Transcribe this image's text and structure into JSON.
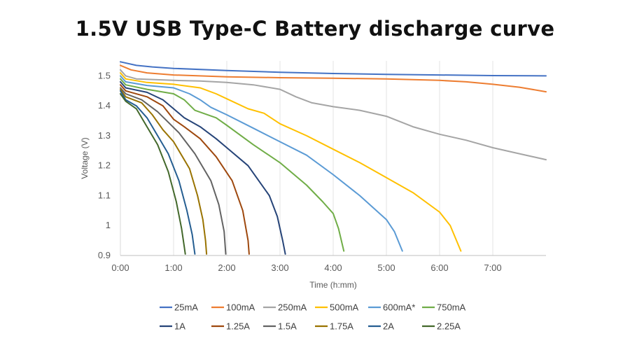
{
  "title": "1.5V USB Type-C Battery discharge curve",
  "chart_data": {
    "type": "line",
    "title": "1.5V USB Type-C Battery discharge curve",
    "xlabel": "Time (h:mm)",
    "ylabel": "Voltage (V)",
    "xlim": [
      0,
      8
    ],
    "ylim": [
      0.9,
      1.55
    ],
    "x_ticks": [
      {
        "value": 0,
        "label": "0:00"
      },
      {
        "value": 1,
        "label": "1:00"
      },
      {
        "value": 2,
        "label": "2:00"
      },
      {
        "value": 3,
        "label": "3:00"
      },
      {
        "value": 4,
        "label": "4:00"
      },
      {
        "value": 5,
        "label": "5:00"
      },
      {
        "value": 6,
        "label": "6:00"
      },
      {
        "value": 7,
        "label": "7:00"
      }
    ],
    "y_ticks": [
      {
        "value": 0.9,
        "label": "0.9"
      },
      {
        "value": 1.0,
        "label": "1"
      },
      {
        "value": 1.1,
        "label": "1.1"
      },
      {
        "value": 1.2,
        "label": "1.2"
      },
      {
        "value": 1.3,
        "label": "1.3"
      },
      {
        "value": 1.4,
        "label": "1.4"
      },
      {
        "value": 1.5,
        "label": "1.5"
      }
    ],
    "grid": "vertical",
    "legend_position": "bottom",
    "series": [
      {
        "name": "25mA",
        "color": "#4472C4",
        "points": [
          [
            0,
            1.547
          ],
          [
            0.3,
            1.535
          ],
          [
            0.6,
            1.53
          ],
          [
            1,
            1.525
          ],
          [
            2,
            1.518
          ],
          [
            3,
            1.512
          ],
          [
            4,
            1.508
          ],
          [
            5,
            1.505
          ],
          [
            6,
            1.503
          ],
          [
            7,
            1.501
          ],
          [
            8,
            1.5
          ]
        ]
      },
      {
        "name": "100mA",
        "color": "#ED7D31",
        "points": [
          [
            0,
            1.535
          ],
          [
            0.2,
            1.52
          ],
          [
            0.5,
            1.51
          ],
          [
            1,
            1.503
          ],
          [
            2,
            1.497
          ],
          [
            3,
            1.494
          ],
          [
            4,
            1.492
          ],
          [
            5,
            1.49
          ],
          [
            6,
            1.485
          ],
          [
            6.5,
            1.48
          ],
          [
            7,
            1.472
          ],
          [
            7.5,
            1.462
          ],
          [
            8,
            1.447
          ]
        ]
      },
      {
        "name": "250mA",
        "color": "#A5A5A5",
        "points": [
          [
            0,
            1.52
          ],
          [
            0.1,
            1.5
          ],
          [
            0.3,
            1.49
          ],
          [
            1,
            1.485
          ],
          [
            1.5,
            1.483
          ],
          [
            2,
            1.478
          ],
          [
            2.5,
            1.47
          ],
          [
            3,
            1.455
          ],
          [
            3.3,
            1.43
          ],
          [
            3.6,
            1.41
          ],
          [
            4,
            1.397
          ],
          [
            4.5,
            1.385
          ],
          [
            5,
            1.365
          ],
          [
            5.5,
            1.33
          ],
          [
            6,
            1.305
          ],
          [
            6.5,
            1.285
          ],
          [
            7,
            1.26
          ],
          [
            7.5,
            1.24
          ],
          [
            8,
            1.22
          ]
        ]
      },
      {
        "name": "500mA",
        "color": "#FFC000",
        "points": [
          [
            0,
            1.51
          ],
          [
            0.1,
            1.49
          ],
          [
            0.5,
            1.478
          ],
          [
            1,
            1.472
          ],
          [
            1.5,
            1.46
          ],
          [
            1.8,
            1.44
          ],
          [
            2.1,
            1.415
          ],
          [
            2.4,
            1.39
          ],
          [
            2.7,
            1.375
          ],
          [
            3,
            1.34
          ],
          [
            3.5,
            1.3
          ],
          [
            4,
            1.255
          ],
          [
            4.5,
            1.21
          ],
          [
            5,
            1.16
          ],
          [
            5.5,
            1.11
          ],
          [
            6,
            1.045
          ],
          [
            6.2,
            1.0
          ],
          [
            6.4,
            0.915
          ]
        ]
      },
      {
        "name": "600mA*",
        "color": "#5B9BD5",
        "points": [
          [
            0,
            1.5
          ],
          [
            0.1,
            1.48
          ],
          [
            0.5,
            1.468
          ],
          [
            1,
            1.46
          ],
          [
            1.3,
            1.44
          ],
          [
            1.5,
            1.42
          ],
          [
            1.7,
            1.395
          ],
          [
            2,
            1.37
          ],
          [
            2.5,
            1.325
          ],
          [
            3,
            1.28
          ],
          [
            3.5,
            1.235
          ],
          [
            4,
            1.17
          ],
          [
            4.5,
            1.1
          ],
          [
            5,
            1.02
          ],
          [
            5.15,
            0.98
          ],
          [
            5.3,
            0.915
          ]
        ]
      },
      {
        "name": "750mA",
        "color": "#70AD47",
        "points": [
          [
            0,
            1.49
          ],
          [
            0.1,
            1.47
          ],
          [
            0.5,
            1.455
          ],
          [
            1,
            1.44
          ],
          [
            1.2,
            1.42
          ],
          [
            1.4,
            1.385
          ],
          [
            1.8,
            1.36
          ],
          [
            2,
            1.335
          ],
          [
            2.5,
            1.27
          ],
          [
            3,
            1.21
          ],
          [
            3.5,
            1.135
          ],
          [
            3.8,
            1.08
          ],
          [
            4,
            1.04
          ],
          [
            4.1,
            0.99
          ],
          [
            4.2,
            0.915
          ]
        ]
      },
      {
        "name": "1A",
        "color": "#264478",
        "points": [
          [
            0,
            1.48
          ],
          [
            0.1,
            1.46
          ],
          [
            0.5,
            1.445
          ],
          [
            0.8,
            1.42
          ],
          [
            1,
            1.39
          ],
          [
            1.2,
            1.36
          ],
          [
            1.5,
            1.33
          ],
          [
            1.8,
            1.29
          ],
          [
            2,
            1.26
          ],
          [
            2.4,
            1.2
          ],
          [
            2.8,
            1.1
          ],
          [
            2.95,
            1.03
          ],
          [
            3.05,
            0.95
          ],
          [
            3.1,
            0.905
          ]
        ]
      },
      {
        "name": "1.25A",
        "color": "#9E480E",
        "points": [
          [
            0,
            1.47
          ],
          [
            0.1,
            1.45
          ],
          [
            0.5,
            1.43
          ],
          [
            0.8,
            1.4
          ],
          [
            1,
            1.355
          ],
          [
            1.2,
            1.33
          ],
          [
            1.5,
            1.29
          ],
          [
            1.8,
            1.23
          ],
          [
            2.1,
            1.15
          ],
          [
            2.3,
            1.05
          ],
          [
            2.4,
            0.95
          ],
          [
            2.42,
            0.905
          ]
        ]
      },
      {
        "name": "1.5A",
        "color": "#636363",
        "points": [
          [
            0,
            1.46
          ],
          [
            0.1,
            1.44
          ],
          [
            0.4,
            1.42
          ],
          [
            0.7,
            1.38
          ],
          [
            0.9,
            1.345
          ],
          [
            1.1,
            1.31
          ],
          [
            1.4,
            1.24
          ],
          [
            1.7,
            1.15
          ],
          [
            1.85,
            1.07
          ],
          [
            1.95,
            0.98
          ],
          [
            1.98,
            0.905
          ]
        ]
      },
      {
        "name": "1.75A",
        "color": "#997300",
        "points": [
          [
            0,
            1.455
          ],
          [
            0.1,
            1.43
          ],
          [
            0.4,
            1.41
          ],
          [
            0.6,
            1.37
          ],
          [
            0.8,
            1.32
          ],
          [
            1.0,
            1.28
          ],
          [
            1.3,
            1.19
          ],
          [
            1.45,
            1.1
          ],
          [
            1.55,
            1.02
          ],
          [
            1.6,
            0.95
          ],
          [
            1.62,
            0.905
          ]
        ]
      },
      {
        "name": "2A",
        "color": "#255E91",
        "points": [
          [
            0,
            1.45
          ],
          [
            0.1,
            1.42
          ],
          [
            0.3,
            1.4
          ],
          [
            0.5,
            1.36
          ],
          [
            0.7,
            1.3
          ],
          [
            0.9,
            1.24
          ],
          [
            1.1,
            1.15
          ],
          [
            1.25,
            1.05
          ],
          [
            1.35,
            0.97
          ],
          [
            1.4,
            0.905
          ]
        ]
      },
      {
        "name": "2.25A",
        "color": "#43682B",
        "points": [
          [
            0,
            1.44
          ],
          [
            0.1,
            1.415
          ],
          [
            0.3,
            1.39
          ],
          [
            0.5,
            1.33
          ],
          [
            0.7,
            1.27
          ],
          [
            0.9,
            1.18
          ],
          [
            1.05,
            1.08
          ],
          [
            1.15,
            0.99
          ],
          [
            1.2,
            0.93
          ],
          [
            1.22,
            0.905
          ]
        ]
      }
    ]
  }
}
